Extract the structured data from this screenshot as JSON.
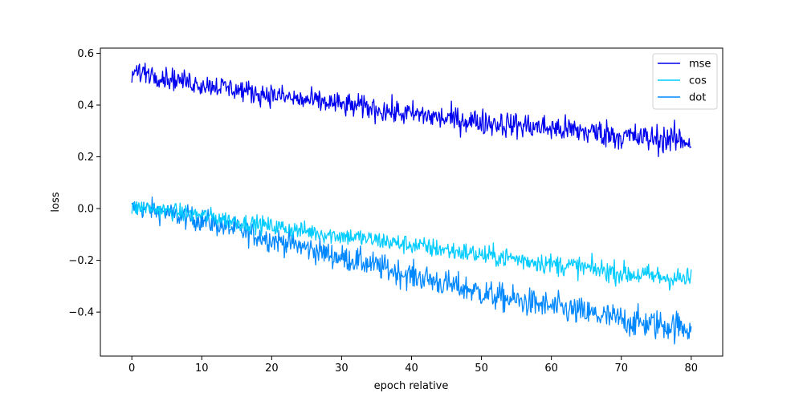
{
  "chart_data": {
    "type": "line",
    "xlabel": "epoch relative",
    "ylabel": "loss",
    "xlim": [
      -4.5,
      84.5
    ],
    "ylim": [
      -0.57,
      0.62
    ],
    "x_ticks": [
      0,
      10,
      20,
      30,
      40,
      50,
      60,
      70,
      80
    ],
    "y_ticks": [
      -0.4,
      -0.2,
      0.0,
      0.2,
      0.4,
      0.6
    ],
    "x_tick_labels": [
      "0",
      "10",
      "20",
      "30",
      "40",
      "50",
      "60",
      "70",
      "80"
    ],
    "y_tick_labels": [
      "−0.4",
      "−0.2",
      "0.0",
      "0.2",
      "0.4",
      "0.6"
    ],
    "legend_position": "top-right",
    "grid": false,
    "series": [
      {
        "name": "mse",
        "color": "#0000ee",
        "x": [
          0,
          2,
          4,
          6,
          8,
          10,
          12,
          14,
          16,
          18,
          20,
          22,
          24,
          26,
          28,
          30,
          32,
          34,
          36,
          38,
          40,
          42,
          44,
          46,
          48,
          50,
          52,
          54,
          56,
          58,
          60,
          62,
          64,
          66,
          68,
          70,
          72,
          74,
          76,
          78,
          80
        ],
        "y": [
          0.52,
          0.53,
          0.51,
          0.5,
          0.49,
          0.48,
          0.475,
          0.465,
          0.455,
          0.445,
          0.44,
          0.43,
          0.42,
          0.415,
          0.41,
          0.4,
          0.395,
          0.39,
          0.38,
          0.37,
          0.365,
          0.36,
          0.35,
          0.345,
          0.34,
          0.335,
          0.33,
          0.325,
          0.32,
          0.315,
          0.31,
          0.305,
          0.3,
          0.295,
          0.29,
          0.28,
          0.275,
          0.27,
          0.27,
          0.265,
          0.26
        ]
      },
      {
        "name": "cos",
        "color": "#00ccff",
        "x": [
          0,
          2,
          4,
          6,
          8,
          10,
          12,
          14,
          16,
          18,
          20,
          22,
          24,
          26,
          28,
          30,
          32,
          34,
          36,
          38,
          40,
          42,
          44,
          46,
          48,
          50,
          52,
          54,
          56,
          58,
          60,
          62,
          64,
          66,
          68,
          70,
          72,
          74,
          76,
          78,
          80
        ],
        "y": [
          0.0,
          0.005,
          -0.005,
          -0.012,
          -0.02,
          -0.025,
          -0.035,
          -0.045,
          -0.055,
          -0.06,
          -0.07,
          -0.075,
          -0.085,
          -0.09,
          -0.1,
          -0.105,
          -0.11,
          -0.12,
          -0.125,
          -0.135,
          -0.14,
          -0.15,
          -0.155,
          -0.165,
          -0.17,
          -0.18,
          -0.185,
          -0.19,
          -0.2,
          -0.205,
          -0.215,
          -0.22,
          -0.225,
          -0.235,
          -0.24,
          -0.25,
          -0.255,
          -0.26,
          -0.265,
          -0.27,
          -0.275
        ]
      },
      {
        "name": "dot",
        "color": "#0088ff",
        "x": [
          0,
          2,
          4,
          6,
          8,
          10,
          12,
          14,
          16,
          18,
          20,
          22,
          24,
          26,
          28,
          30,
          32,
          34,
          36,
          38,
          40,
          42,
          44,
          46,
          48,
          50,
          52,
          54,
          56,
          58,
          60,
          62,
          64,
          66,
          68,
          70,
          72,
          74,
          76,
          78,
          80
        ],
        "y": [
          0.0,
          0.0,
          -0.01,
          -0.025,
          -0.035,
          -0.045,
          -0.06,
          -0.075,
          -0.09,
          -0.105,
          -0.12,
          -0.13,
          -0.145,
          -0.16,
          -0.175,
          -0.19,
          -0.2,
          -0.215,
          -0.23,
          -0.245,
          -0.26,
          -0.27,
          -0.285,
          -0.3,
          -0.31,
          -0.325,
          -0.34,
          -0.35,
          -0.36,
          -0.37,
          -0.38,
          -0.39,
          -0.4,
          -0.41,
          -0.42,
          -0.43,
          -0.44,
          -0.445,
          -0.45,
          -0.455,
          -0.46
        ]
      }
    ]
  }
}
